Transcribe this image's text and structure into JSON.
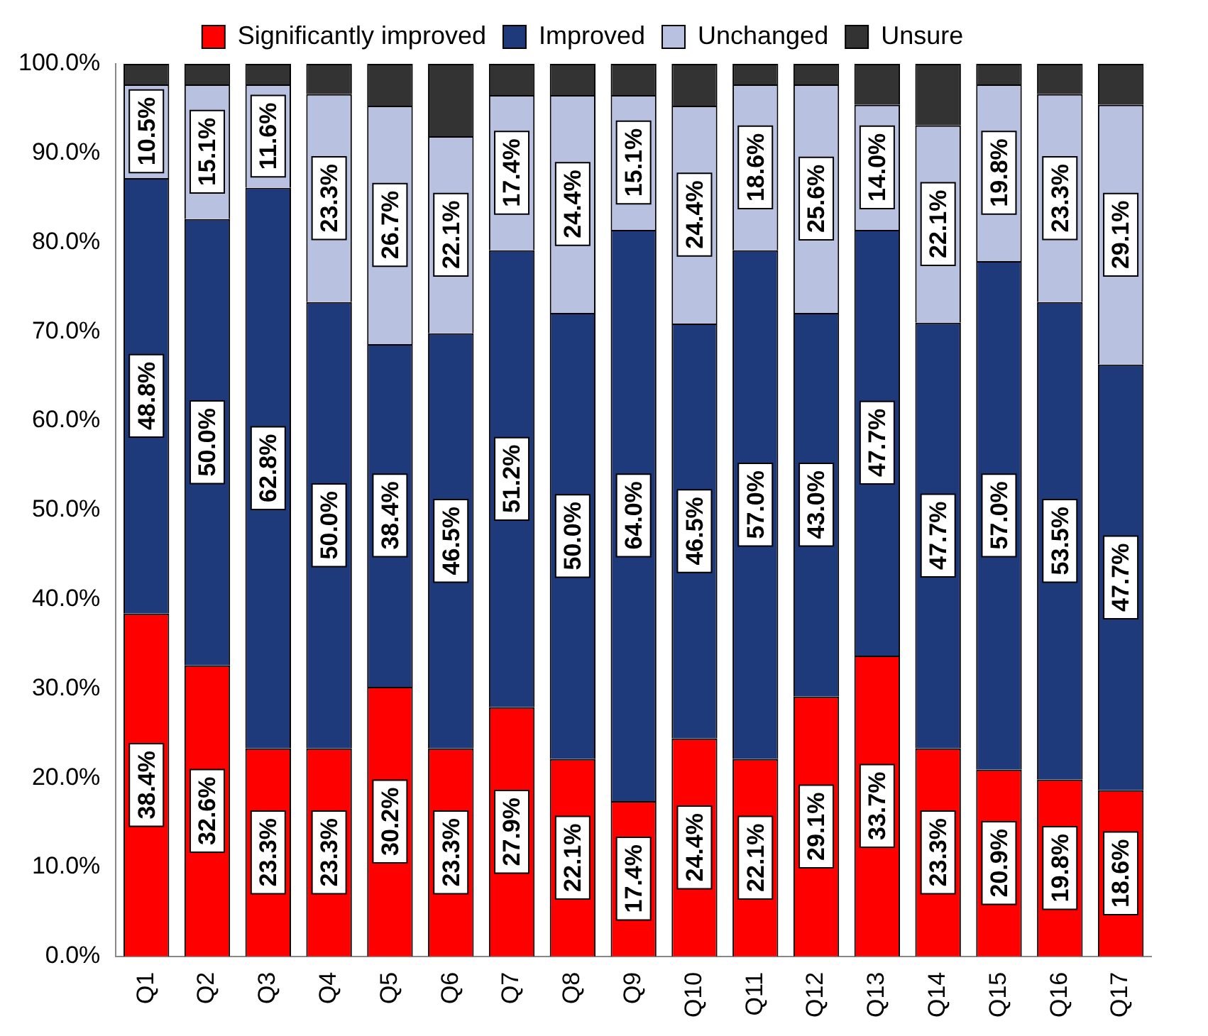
{
  "chart_data": {
    "type": "bar",
    "stacked": true,
    "legend": "top",
    "grid": false,
    "categories": [
      "Q1",
      "Q2",
      "Q3",
      "Q4",
      "Q5",
      "Q6",
      "Q7",
      "Q8",
      "Q9",
      "Q10",
      "Q11",
      "Q12",
      "Q13",
      "Q14",
      "Q15",
      "Q16",
      "Q17"
    ],
    "ylim": [
      0,
      100
    ],
    "yticks": [
      {
        "value": 0,
        "label": "0.0%"
      },
      {
        "value": 10,
        "label": "10.0%"
      },
      {
        "value": 20,
        "label": "20.0%"
      },
      {
        "value": 30,
        "label": "30.0%"
      },
      {
        "value": 40,
        "label": "40.0%"
      },
      {
        "value": 50,
        "label": "50.0%"
      },
      {
        "value": 60,
        "label": "60.0%"
      },
      {
        "value": 70,
        "label": "70.0%"
      },
      {
        "value": 80,
        "label": "80.0%"
      },
      {
        "value": 90,
        "label": "90.0%"
      },
      {
        "value": 100,
        "label": "100.0%"
      }
    ],
    "series": [
      {
        "name": "Significantly improved",
        "color": "#ff0000",
        "values": [
          38.4,
          32.6,
          23.3,
          23.3,
          30.2,
          23.3,
          27.9,
          22.1,
          17.4,
          24.4,
          22.1,
          29.1,
          33.7,
          23.3,
          20.9,
          19.8,
          18.6
        ],
        "value_labels": [
          "38.4%",
          "32.6%",
          "23.3%",
          "23.3%",
          "30.2%",
          "23.3%",
          "27.9%",
          "22.1%",
          "17.4%",
          "24.4%",
          "22.1%",
          "29.1%",
          "33.7%",
          "23.3%",
          "20.9%",
          "19.8%",
          "18.6%"
        ]
      },
      {
        "name": "Improved",
        "color": "#1f3a7a",
        "values": [
          48.8,
          50.0,
          62.8,
          50.0,
          38.4,
          46.5,
          51.2,
          50.0,
          64.0,
          46.5,
          57.0,
          43.0,
          47.7,
          47.7,
          57.0,
          53.5,
          47.7
        ],
        "value_labels": [
          "48.8%",
          "50.0%",
          "62.8%",
          "50.0%",
          "38.4%",
          "46.5%",
          "51.2%",
          "50.0%",
          "64.0%",
          "46.5%",
          "57.0%",
          "43.0%",
          "47.7%",
          "47.7%",
          "57.0%",
          "53.5%",
          "47.7%"
        ]
      },
      {
        "name": "Unchanged",
        "color": "#b8c2e0",
        "values": [
          10.5,
          15.1,
          11.6,
          23.3,
          26.7,
          22.1,
          17.4,
          24.4,
          15.1,
          24.4,
          18.6,
          25.6,
          14.0,
          22.1,
          19.8,
          23.3,
          29.1
        ],
        "value_labels": [
          "10.5%",
          "15.1%",
          "11.6%",
          "23.3%",
          "26.7%",
          "22.1%",
          "17.4%",
          "24.4%",
          "15.1%",
          "24.4%",
          "18.6%",
          "25.6%",
          "14.0%",
          "22.1%",
          "19.8%",
          "23.3%",
          "29.1%"
        ]
      },
      {
        "name": "Unsure",
        "color": "#333333",
        "values": [
          2.3,
          2.3,
          2.3,
          3.4,
          4.7,
          8.1,
          3.5,
          3.5,
          3.5,
          4.7,
          2.3,
          2.3,
          4.6,
          6.9,
          2.3,
          3.4,
          4.6
        ]
      }
    ]
  }
}
